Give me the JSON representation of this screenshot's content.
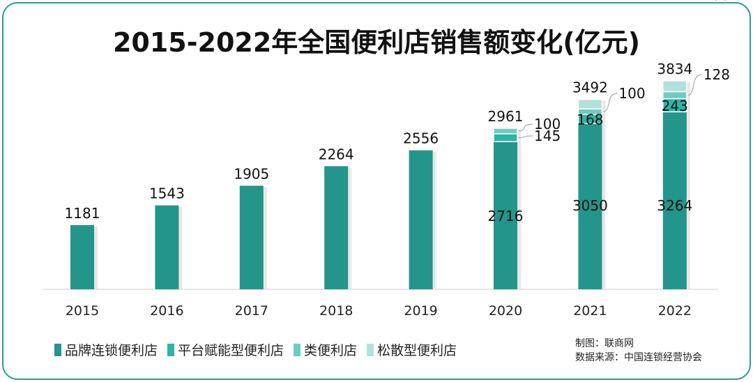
{
  "chart_data": {
    "type": "bar",
    "stacked": true,
    "title": "2015-2022年全国便利店销售额变化(亿元)",
    "categories": [
      "2015",
      "2016",
      "2017",
      "2018",
      "2019",
      "2020",
      "2021",
      "2022"
    ],
    "series": [
      {
        "name": "品牌连锁便利店",
        "color": "#24958a",
        "values": [
          1181,
          1543,
          1905,
          2264,
          2556,
          2716,
          3050,
          3264
        ]
      },
      {
        "name": "平台赋能型便利店",
        "color": "#2bb5a6",
        "values": [
          0,
          0,
          0,
          0,
          0,
          145,
          168,
          243
        ]
      },
      {
        "name": "类便利店",
        "color": "#6fcbc1",
        "values": [
          0,
          0,
          0,
          0,
          0,
          100,
          100,
          128
        ]
      },
      {
        "name": "松散型便利店",
        "color": "#b2e0da",
        "values": [
          0,
          0,
          0,
          0,
          0,
          0,
          174,
          199
        ]
      }
    ],
    "totals": [
      1181,
      1543,
      1905,
      2264,
      2556,
      2961,
      3492,
      3834
    ],
    "xlabel": "",
    "ylabel": "",
    "ylim": [
      0,
      3834
    ],
    "legend_position": "bottom-left",
    "grid": false
  },
  "credits": {
    "made_by": "制图：联商网",
    "source": "数据来源：中国连锁经营协会"
  }
}
